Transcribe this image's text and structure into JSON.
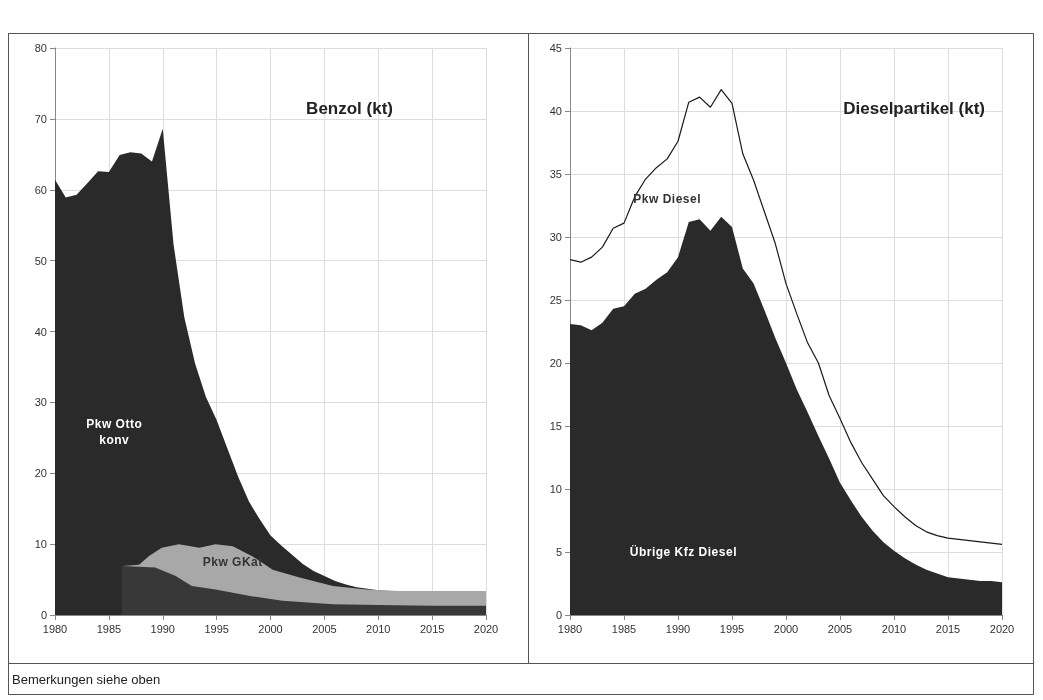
{
  "chart_data": [
    {
      "type": "area",
      "title": "Benzol (kt)",
      "xlim": [
        1980,
        2020
      ],
      "xticks": [
        1980,
        1985,
        1990,
        1995,
        2000,
        2005,
        2010,
        2015,
        2020
      ],
      "ylim": [
        0,
        80
      ],
      "yticks": [
        0,
        10,
        20,
        30,
        40,
        50,
        60,
        70,
        80
      ],
      "grid": true,
      "marker": "none",
      "annotations": [
        "Bemerkungen siehe oben"
      ],
      "series": [
        {
          "name": "Pkw Otto konv",
          "color": "#2a2a2a",
          "x": [
            1980,
            1981,
            1982,
            1983,
            1984,
            1985,
            1986,
            1987,
            1988,
            1989,
            1990,
            1991,
            1992,
            1993,
            1994,
            1995,
            1996,
            1997,
            1998,
            1999,
            2000,
            2001,
            2002,
            2003,
            2004,
            2005,
            2006,
            2007,
            2008,
            2009,
            2010,
            2011,
            2012,
            2013,
            2014,
            2015,
            2016,
            2017,
            2018,
            2019,
            2020
          ],
          "values": [
            61.4,
            58.9,
            59.3,
            60.9,
            62.6,
            62.5,
            64.9,
            65.3,
            65.1,
            64.0,
            68.6,
            52.3,
            42.0,
            35.5,
            30.8,
            27.5,
            23.5,
            19.5,
            16.0,
            13.5,
            11.2,
            9.8,
            8.5,
            7.2,
            6.2,
            5.5,
            4.8,
            4.3,
            3.9,
            3.7,
            3.5,
            3.4,
            3.4,
            3.4,
            3.4,
            3.4,
            3.4,
            3.4,
            3.4,
            3.4,
            3.4
          ]
        },
        {
          "name": "Pkw GKat",
          "color": "#a8a8a8",
          "x": [
            1986.3,
            1987.8,
            1988.7,
            1989.9,
            1991.5,
            1993.4,
            1994.9,
            1996.5,
            1998.3,
            2000.2,
            2002.7,
            2005.8,
            2008.9,
            2012,
            2016,
            2020
          ],
          "values": [
            6.9,
            7.1,
            8.3,
            9.5,
            10.0,
            9.5,
            10.0,
            9.7,
            8.3,
            6.4,
            5.3,
            4.1,
            3.6,
            3.4,
            3.4,
            3.4
          ]
        },
        {
          "color": "#383838",
          "x": [
            1986.3,
            1989.3,
            1991.2,
            1992.7,
            1994.9,
            1998,
            2001.1,
            2005.8,
            2010,
            2015,
            2020
          ],
          "values": [
            6.9,
            6.7,
            5.5,
            4.1,
            3.6,
            2.7,
            2.0,
            1.5,
            1.4,
            1.3,
            1.3
          ]
        }
      ]
    },
    {
      "type": "area",
      "title": "Dieselpartikel (kt)",
      "xlim": [
        1980,
        2020
      ],
      "xticks": [
        1980,
        1985,
        1990,
        1995,
        2000,
        2005,
        2010,
        2015,
        2020
      ],
      "ylim": [
        0,
        45
      ],
      "yticks": [
        0,
        5,
        10,
        15,
        20,
        25,
        30,
        35,
        40,
        45
      ],
      "grid": true,
      "marker": "none",
      "x": [
        1980,
        1981,
        1982,
        1983,
        1984,
        1985,
        1986,
        1987,
        1988,
        1989,
        1990,
        1991,
        1992,
        1993,
        1994,
        1995,
        1996,
        1997,
        1998,
        1999,
        2000,
        2001,
        2002,
        2003,
        2004,
        2005,
        2006,
        2007,
        2008,
        2009,
        2010,
        2011,
        2012,
        2013,
        2014,
        2015,
        2016,
        2017,
        2018,
        2019,
        2020
      ],
      "series": [
        {
          "name": "Übrige Kfz Diesel",
          "color": "#2a2a2a",
          "values": [
            23.1,
            23.0,
            22.6,
            23.2,
            24.3,
            24.5,
            25.5,
            25.9,
            26.6,
            27.2,
            28.4,
            31.2,
            31.4,
            30.5,
            31.6,
            30.8,
            27.5,
            26.3,
            24.2,
            22.0,
            20.0,
            17.9,
            16.1,
            14.2,
            12.4,
            10.5,
            9.1,
            7.8,
            6.7,
            5.8,
            5.1,
            4.5,
            4.0,
            3.6,
            3.3,
            3.0,
            2.9,
            2.8,
            2.7,
            2.7,
            2.6
          ]
        },
        {
          "name": "Pkw Diesel",
          "type": "line",
          "color": "#1a1a1a",
          "values": [
            28.2,
            28.0,
            28.4,
            29.2,
            30.7,
            31.1,
            33.2,
            34.6,
            35.5,
            36.2,
            37.6,
            40.7,
            41.1,
            40.3,
            41.7,
            40.6,
            36.6,
            34.5,
            32.0,
            29.5,
            26.3,
            23.9,
            21.6,
            20.0,
            17.4,
            15.6,
            13.7,
            12.1,
            10.8,
            9.5,
            8.6,
            7.8,
            7.1,
            6.6,
            6.3,
            6.1,
            6.0,
            5.9,
            5.8,
            5.7,
            5.6
          ]
        }
      ]
    }
  ]
}
